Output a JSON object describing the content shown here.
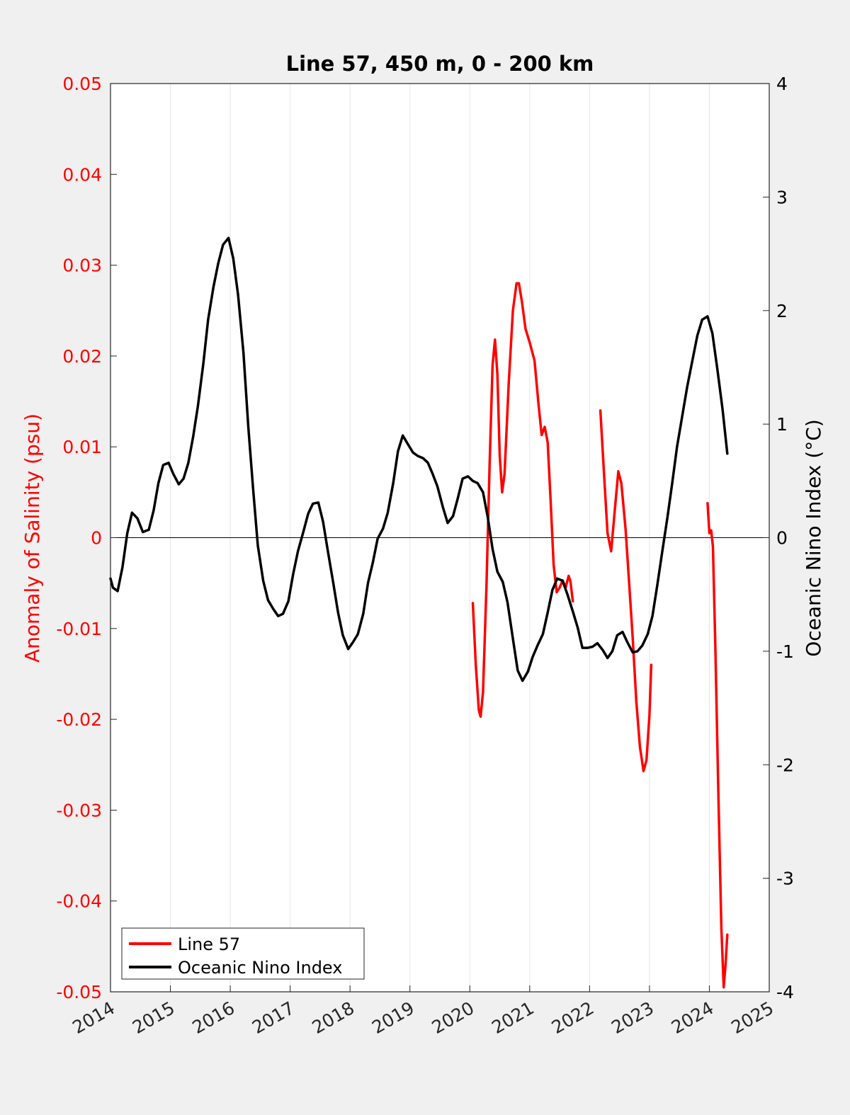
{
  "chart_data": {
    "type": "line",
    "title": "Line 57, 450 m, 0 - 200 km",
    "xlabel": "",
    "ylabel_left": "Anomaly of Salinity (psu)",
    "ylabel_right": "Oceanic Nino Index (°C)",
    "xlim": [
      2014,
      2025
    ],
    "ylim_left": [
      -0.05,
      0.05
    ],
    "ylim_right": [
      -4,
      4
    ],
    "x_ticks": [
      "2014",
      "2015",
      "2016",
      "2017",
      "2018",
      "2019",
      "2020",
      "2021",
      "2022",
      "2023",
      "2024",
      "2025"
    ],
    "y_left_ticks": [
      "0.05",
      "0.04",
      "0.03",
      "0.02",
      "0.01",
      "0",
      "-0.01",
      "-0.02",
      "-0.03",
      "-0.04",
      "-0.05"
    ],
    "y_right_ticks": [
      "4",
      "3",
      "2",
      "1",
      "0",
      "-1",
      "-2",
      "-3",
      "-4"
    ],
    "grid": "vertical",
    "zero_line": true,
    "legend_position": "bottom-left",
    "colors": {
      "line57": "#ff0000",
      "oni": "#000000",
      "left_axis": "#ff0000",
      "right_axis": "#000000"
    },
    "series": [
      {
        "name": "Line 57",
        "axis": "left",
        "color": "#ff0000",
        "segments": [
          [
            [
              2020.05,
              -0.0072
            ],
            [
              2020.1,
              -0.014
            ],
            [
              2020.15,
              -0.019
            ],
            [
              2020.18,
              -0.0197
            ],
            [
              2020.22,
              -0.017
            ],
            [
              2020.28,
              -0.005
            ],
            [
              2020.33,
              0.008
            ],
            [
              2020.38,
              0.019
            ],
            [
              2020.42,
              0.0218
            ],
            [
              2020.46,
              0.018
            ],
            [
              2020.5,
              0.009
            ],
            [
              2020.54,
              0.005
            ],
            [
              2020.58,
              0.007
            ],
            [
              2020.65,
              0.017
            ],
            [
              2020.72,
              0.025
            ],
            [
              2020.78,
              0.028
            ],
            [
              2020.82,
              0.028
            ],
            [
              2020.87,
              0.026
            ],
            [
              2020.93,
              0.023
            ],
            [
              2021.0,
              0.0215
            ],
            [
              2021.08,
              0.0195
            ],
            [
              2021.15,
              0.0145
            ],
            [
              2021.2,
              0.0113
            ],
            [
              2021.25,
              0.0122
            ],
            [
              2021.3,
              0.0105
            ],
            [
              2021.35,
              0.004
            ],
            [
              2021.4,
              -0.003
            ],
            [
              2021.45,
              -0.006
            ],
            [
              2021.5,
              -0.0055
            ],
            [
              2021.55,
              -0.0047
            ],
            [
              2021.6,
              -0.0055
            ],
            [
              2021.65,
              -0.0042
            ],
            [
              2021.68,
              -0.0048
            ],
            [
              2021.72,
              -0.007
            ]
          ],
          [
            [
              2022.18,
              0.014
            ],
            [
              2022.25,
              0.006
            ],
            [
              2022.3,
              0.0005
            ],
            [
              2022.36,
              -0.0015
            ],
            [
              2022.42,
              0.003
            ],
            [
              2022.48,
              0.0073
            ],
            [
              2022.53,
              0.006
            ],
            [
              2022.6,
              0.001
            ],
            [
              2022.66,
              -0.005
            ],
            [
              2022.72,
              -0.011
            ],
            [
              2022.78,
              -0.018
            ],
            [
              2022.84,
              -0.023
            ],
            [
              2022.9,
              -0.0257
            ],
            [
              2022.95,
              -0.0245
            ],
            [
              2023.0,
              -0.0195
            ],
            [
              2023.03,
              -0.014
            ]
          ],
          [
            [
              2023.97,
              0.0038
            ],
            [
              2024.0,
              0.0005
            ],
            [
              2024.03,
              0.0008
            ],
            [
              2024.06,
              -0.001
            ],
            [
              2024.1,
              -0.012
            ],
            [
              2024.15,
              -0.028
            ],
            [
              2024.2,
              -0.043
            ],
            [
              2024.24,
              -0.0495
            ],
            [
              2024.27,
              -0.047
            ],
            [
              2024.3,
              -0.0437
            ]
          ]
        ]
      },
      {
        "name": "Oceanic Nino Index",
        "axis": "right",
        "color": "#000000",
        "segments": [
          [
            [
              2014.0,
              -0.36
            ],
            [
              2014.04,
              -0.44
            ],
            [
              2014.12,
              -0.47
            ],
            [
              2014.2,
              -0.26
            ],
            [
              2014.28,
              0.04
            ],
            [
              2014.36,
              0.22
            ],
            [
              2014.45,
              0.17
            ],
            [
              2014.54,
              0.05
            ],
            [
              2014.64,
              0.07
            ],
            [
              2014.72,
              0.24
            ],
            [
              2014.8,
              0.48
            ],
            [
              2014.88,
              0.64
            ],
            [
              2014.97,
              0.66
            ],
            [
              2015.05,
              0.56
            ],
            [
              2015.14,
              0.47
            ],
            [
              2015.22,
              0.52
            ],
            [
              2015.3,
              0.66
            ],
            [
              2015.38,
              0.89
            ],
            [
              2015.46,
              1.16
            ],
            [
              2015.55,
              1.53
            ],
            [
              2015.63,
              1.92
            ],
            [
              2015.72,
              2.21
            ],
            [
              2015.8,
              2.42
            ],
            [
              2015.88,
              2.58
            ],
            [
              2015.97,
              2.64
            ],
            [
              2016.05,
              2.46
            ],
            [
              2016.13,
              2.14
            ],
            [
              2016.22,
              1.63
            ],
            [
              2016.3,
              0.98
            ],
            [
              2016.38,
              0.44
            ],
            [
              2016.46,
              -0.07
            ],
            [
              2016.55,
              -0.38
            ],
            [
              2016.63,
              -0.55
            ],
            [
              2016.72,
              -0.63
            ],
            [
              2016.8,
              -0.69
            ],
            [
              2016.88,
              -0.67
            ],
            [
              2016.97,
              -0.56
            ],
            [
              2017.05,
              -0.32
            ],
            [
              2017.13,
              -0.12
            ],
            [
              2017.22,
              0.05
            ],
            [
              2017.3,
              0.21
            ],
            [
              2017.38,
              0.3
            ],
            [
              2017.47,
              0.31
            ],
            [
              2017.55,
              0.14
            ],
            [
              2017.63,
              -0.12
            ],
            [
              2017.72,
              -0.4
            ],
            [
              2017.8,
              -0.66
            ],
            [
              2017.88,
              -0.86
            ],
            [
              2017.97,
              -0.98
            ],
            [
              2018.05,
              -0.92
            ],
            [
              2018.13,
              -0.85
            ],
            [
              2018.22,
              -0.67
            ],
            [
              2018.3,
              -0.4
            ],
            [
              2018.38,
              -0.22
            ],
            [
              2018.46,
              -0.01
            ],
            [
              2018.55,
              0.08
            ],
            [
              2018.63,
              0.22
            ],
            [
              2018.72,
              0.48
            ],
            [
              2018.8,
              0.76
            ],
            [
              2018.88,
              0.9
            ],
            [
              2018.97,
              0.82
            ],
            [
              2019.05,
              0.75
            ],
            [
              2019.13,
              0.72
            ],
            [
              2019.22,
              0.7
            ],
            [
              2019.3,
              0.66
            ],
            [
              2019.38,
              0.56
            ],
            [
              2019.46,
              0.45
            ],
            [
              2019.55,
              0.27
            ],
            [
              2019.63,
              0.13
            ],
            [
              2019.72,
              0.19
            ],
            [
              2019.8,
              0.35
            ],
            [
              2019.88,
              0.52
            ],
            [
              2019.97,
              0.54
            ],
            [
              2020.05,
              0.5
            ],
            [
              2020.13,
              0.48
            ],
            [
              2020.22,
              0.4
            ],
            [
              2020.3,
              0.18
            ],
            [
              2020.38,
              -0.1
            ],
            [
              2020.46,
              -0.3
            ],
            [
              2020.55,
              -0.39
            ],
            [
              2020.63,
              -0.57
            ],
            [
              2020.72,
              -0.89
            ],
            [
              2020.8,
              -1.17
            ],
            [
              2020.88,
              -1.26
            ],
            [
              2020.97,
              -1.18
            ],
            [
              2021.05,
              -1.05
            ],
            [
              2021.13,
              -0.95
            ],
            [
              2021.22,
              -0.85
            ],
            [
              2021.3,
              -0.66
            ],
            [
              2021.38,
              -0.46
            ],
            [
              2021.46,
              -0.36
            ],
            [
              2021.55,
              -0.38
            ],
            [
              2021.63,
              -0.5
            ],
            [
              2021.72,
              -0.65
            ],
            [
              2021.8,
              -0.79
            ],
            [
              2021.88,
              -0.97
            ],
            [
              2021.97,
              -0.97
            ],
            [
              2022.05,
              -0.96
            ],
            [
              2022.13,
              -0.93
            ],
            [
              2022.22,
              -0.99
            ],
            [
              2022.3,
              -1.06
            ],
            [
              2022.38,
              -1.0
            ],
            [
              2022.46,
              -0.86
            ],
            [
              2022.55,
              -0.83
            ],
            [
              2022.63,
              -0.92
            ],
            [
              2022.72,
              -1.01
            ],
            [
              2022.8,
              -1.0
            ],
            [
              2022.88,
              -0.95
            ],
            [
              2022.97,
              -0.85
            ],
            [
              2023.05,
              -0.69
            ],
            [
              2023.13,
              -0.42
            ],
            [
              2023.22,
              -0.1
            ],
            [
              2023.3,
              0.18
            ],
            [
              2023.38,
              0.48
            ],
            [
              2023.46,
              0.8
            ],
            [
              2023.55,
              1.08
            ],
            [
              2023.63,
              1.33
            ],
            [
              2023.72,
              1.57
            ],
            [
              2023.8,
              1.78
            ],
            [
              2023.88,
              1.92
            ],
            [
              2023.97,
              1.95
            ],
            [
              2024.05,
              1.8
            ],
            [
              2024.13,
              1.5
            ],
            [
              2024.22,
              1.13
            ],
            [
              2024.3,
              0.74
            ]
          ]
        ]
      }
    ]
  }
}
